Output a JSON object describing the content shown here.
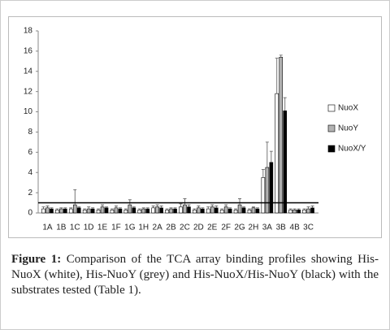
{
  "chart_data": {
    "type": "bar",
    "categories": [
      "1A",
      "1B",
      "1C",
      "1D",
      "1E",
      "1F",
      "1G",
      "1H",
      "2A",
      "2B",
      "2C",
      "2D",
      "2E",
      "2F",
      "2G",
      "2H",
      "3A",
      "3B",
      "4B",
      "3C"
    ],
    "series": [
      {
        "name": "NuoX",
        "color": "#ffffff",
        "values": [
          0.4,
          0.3,
          0.4,
          0.3,
          0.3,
          0.3,
          0.3,
          0.3,
          0.5,
          0.3,
          0.6,
          0.3,
          0.4,
          0.3,
          0.3,
          0.3,
          3.5,
          11.8,
          0.3,
          0.3
        ],
        "errors": [
          0.2,
          0.1,
          0.1,
          0.1,
          0.1,
          0.1,
          0.1,
          0.1,
          0.2,
          0.1,
          0.3,
          0.1,
          0.2,
          0.1,
          0.1,
          0.1,
          0.8,
          3.5,
          0.1,
          0.1
        ]
      },
      {
        "name": "NuoY",
        "color": "#b3b3b3",
        "values": [
          0.5,
          0.4,
          0.8,
          0.4,
          0.6,
          0.5,
          0.8,
          0.4,
          0.6,
          0.4,
          0.8,
          0.5,
          0.6,
          0.6,
          0.8,
          0.5,
          4.5,
          15.4,
          0.3,
          0.4
        ],
        "errors": [
          0.2,
          0.1,
          1.5,
          0.2,
          0.2,
          0.2,
          0.5,
          0.1,
          0.2,
          0.1,
          0.6,
          0.2,
          0.2,
          0.2,
          0.6,
          0.1,
          2.5,
          0.2,
          0.1,
          0.2
        ]
      },
      {
        "name": "NuoX/Y",
        "color": "#000000",
        "values": [
          0.4,
          0.4,
          0.5,
          0.4,
          0.5,
          0.4,
          0.5,
          0.4,
          0.5,
          0.4,
          0.6,
          0.4,
          0.5,
          0.4,
          0.5,
          0.4,
          5,
          10.1,
          0.3,
          0.5
        ],
        "errors": [
          0.1,
          0.1,
          0.1,
          0.1,
          0.1,
          0.1,
          0.1,
          0.1,
          0.2,
          0.1,
          0.2,
          0.1,
          0.2,
          0.1,
          0.1,
          0.1,
          1.1,
          1.3,
          0.1,
          0.2
        ]
      }
    ],
    "reference_line": 1,
    "ylim": [
      0,
      18
    ],
    "yticks": [
      0,
      2,
      4,
      6,
      8,
      10,
      12,
      14,
      16,
      18
    ],
    "grid": false
  },
  "caption": {
    "label": "Figure 1:",
    "text": " Comparison of the TCA array binding profiles showing His-NuoX (white), His-NuoY (grey) and His-NuoX/His-NuoY (black) with the substrates tested (Table 1)."
  }
}
